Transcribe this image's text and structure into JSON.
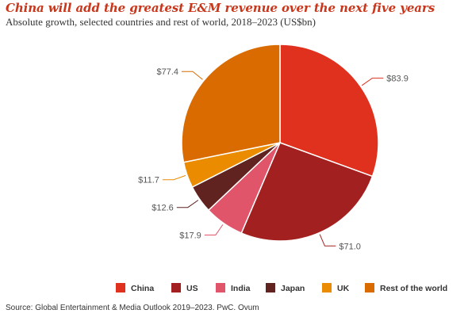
{
  "title": "China will add the greatest E&M revenue over the next five years",
  "subtitle": "Absolute growth, selected countries and rest of world, 2018–2023 (US$bn)",
  "source": "Source: Global Entertainment & Media Outlook 2019–2023. PwC. Ovum",
  "chart_data": {
    "type": "pie",
    "title": "China will add the greatest E&M revenue over the next five years",
    "subtitle": "Absolute growth, selected countries and rest of world, 2018–2023 (US$bn)",
    "legend_position": "bottom",
    "slices": [
      {
        "name": "China",
        "value": 83.9,
        "label": "$83.9",
        "color": "#e0301e"
      },
      {
        "name": "US",
        "value": 71.0,
        "label": "$71.0",
        "color": "#a32020"
      },
      {
        "name": "India",
        "value": 17.9,
        "label": "$17.9",
        "color": "#e0556a"
      },
      {
        "name": "Japan",
        "value": 12.6,
        "label": "$12.6",
        "color": "#602320"
      },
      {
        "name": "UK",
        "value": 11.7,
        "label": "$11.7",
        "color": "#eb8c00"
      },
      {
        "name": "Rest of the world",
        "value": 77.4,
        "label": "$77.4",
        "color": "#d96b00"
      }
    ]
  }
}
